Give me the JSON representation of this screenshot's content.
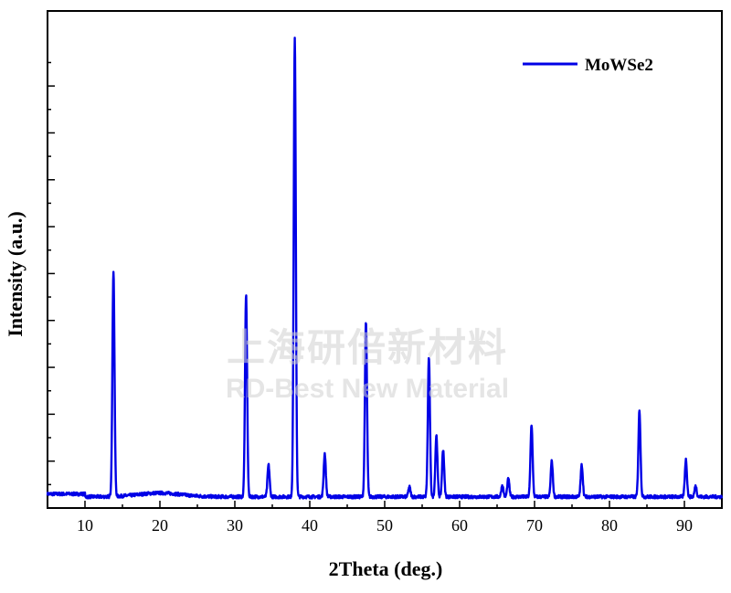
{
  "chart_data": {
    "type": "line",
    "xlabel": "2Theta (deg.)",
    "ylabel": "Intensity (a.u.)",
    "xlim": [
      5,
      95
    ],
    "ylim": [
      0,
      1
    ],
    "x_ticks": [
      10,
      20,
      30,
      40,
      50,
      60,
      70,
      80,
      90
    ],
    "x_tick_labels": [
      "10",
      "20",
      "30",
      "40",
      "50",
      "60",
      "70",
      "80",
      "90"
    ],
    "y_ticks_labeled": false,
    "grid": false,
    "legend_position": "top-right",
    "series": [
      {
        "name": "MoWSe2",
        "color": "#0000e6",
        "baseline": 0.024,
        "peaks": [
          {
            "x": 13.8,
            "y": 0.505
          },
          {
            "x": 31.5,
            "y": 0.455
          },
          {
            "x": 34.5,
            "y": 0.092
          },
          {
            "x": 38.0,
            "y": 1.0
          },
          {
            "x": 42.0,
            "y": 0.116
          },
          {
            "x": 47.5,
            "y": 0.396
          },
          {
            "x": 53.3,
            "y": 0.045
          },
          {
            "x": 55.9,
            "y": 0.322
          },
          {
            "x": 56.9,
            "y": 0.155
          },
          {
            "x": 57.8,
            "y": 0.125
          },
          {
            "x": 65.7,
            "y": 0.048
          },
          {
            "x": 66.5,
            "y": 0.062
          },
          {
            "x": 69.6,
            "y": 0.178
          },
          {
            "x": 72.3,
            "y": 0.1
          },
          {
            "x": 76.3,
            "y": 0.092
          },
          {
            "x": 84.0,
            "y": 0.208
          },
          {
            "x": 90.2,
            "y": 0.103
          },
          {
            "x": 91.5,
            "y": 0.047
          }
        ]
      }
    ]
  },
  "watermark": {
    "line1": "上海研倍新材料",
    "line2": "RD-Best New Material"
  }
}
